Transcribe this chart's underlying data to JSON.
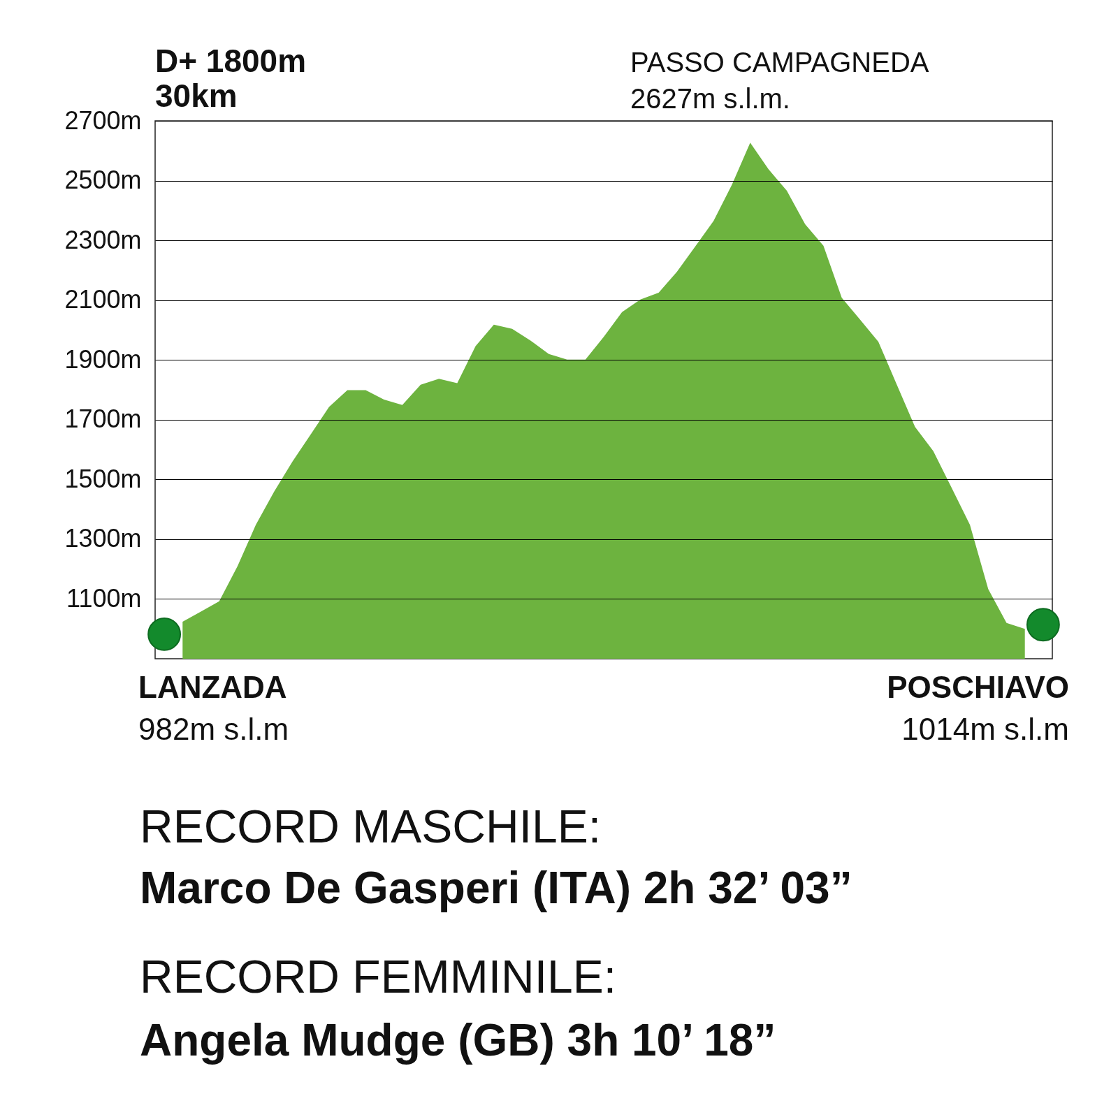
{
  "chart_data": {
    "type": "area",
    "title": "D+ 1800m",
    "subtitle": "30km",
    "categories": [
      null,
      null,
      null,
      null,
      null,
      null,
      null,
      null,
      null,
      null,
      null,
      null,
      null,
      null,
      null,
      null,
      null,
      null,
      null,
      null,
      null,
      null,
      null,
      null,
      null,
      null,
      null,
      null,
      null,
      null,
      null,
      null,
      null,
      null,
      null,
      null,
      null,
      null,
      null,
      null,
      null,
      null,
      null,
      null,
      null,
      null,
      null,
      null,
      null
    ],
    "series": [
      {
        "color": "#6db33f",
        "values": [
          null,
          1024,
          1058,
          1092,
          1210,
          1348,
          1459,
          1560,
          1651,
          1743,
          1799,
          1799,
          1767,
          1749,
          1817,
          1837,
          1822,
          1946,
          2018,
          2004,
          1965,
          1920,
          1901,
          1901,
          1977,
          2060,
          2102,
          2125,
          2195,
          2280,
          2365,
          2486,
          2627,
          2538,
          2466,
          2354,
          2282,
          2108,
          2035,
          1961,
          1818,
          1676,
          1595,
          1472,
          1348,
          1133,
          1020,
          1000,
          null
        ]
      },
      {
        "type": "scatter",
        "color": "#138a2c",
        "values": [
          982,
          null,
          null,
          null,
          null,
          null,
          null,
          null,
          null,
          null,
          null,
          null,
          null,
          null,
          null,
          null,
          null,
          null,
          null,
          null,
          null,
          null,
          null,
          null,
          null,
          null,
          null,
          null,
          null,
          null,
          null,
          null,
          null,
          null,
          null,
          null,
          null,
          null,
          null,
          null,
          null,
          null,
          null,
          null,
          null,
          null,
          null,
          null,
          1014
        ]
      }
    ],
    "ylim": [
      900,
      2700
    ],
    "yticks": [
      {
        "value": 1100,
        "label": "1100m"
      },
      {
        "value": 1300,
        "label": "1300m"
      },
      {
        "value": 1500,
        "label": "1500m"
      },
      {
        "value": 1700,
        "label": "1700m"
      },
      {
        "value": 1900,
        "label": "1900m"
      },
      {
        "value": 2100,
        "label": "2100m"
      },
      {
        "value": 2300,
        "label": "2300m"
      },
      {
        "value": 2500,
        "label": "2500m"
      },
      {
        "value": 2700,
        "label": "2700m"
      }
    ],
    "tick_labels": "y",
    "grid": "y",
    "annotations": [
      "PASSO CAMPAGNEDA",
      "2627m s.l.m.",
      "LANZADA",
      "982m s.l.m",
      "POSCHIAVO",
      "1014m s.l.m",
      "RECORD MASCHILE:",
      "Marco De Gasperi (ITA) 2h 32’ 03”",
      "RECORD FEMMINILE:",
      "Angela Mudge (GB) 3h 10’ 18”"
    ]
  }
}
